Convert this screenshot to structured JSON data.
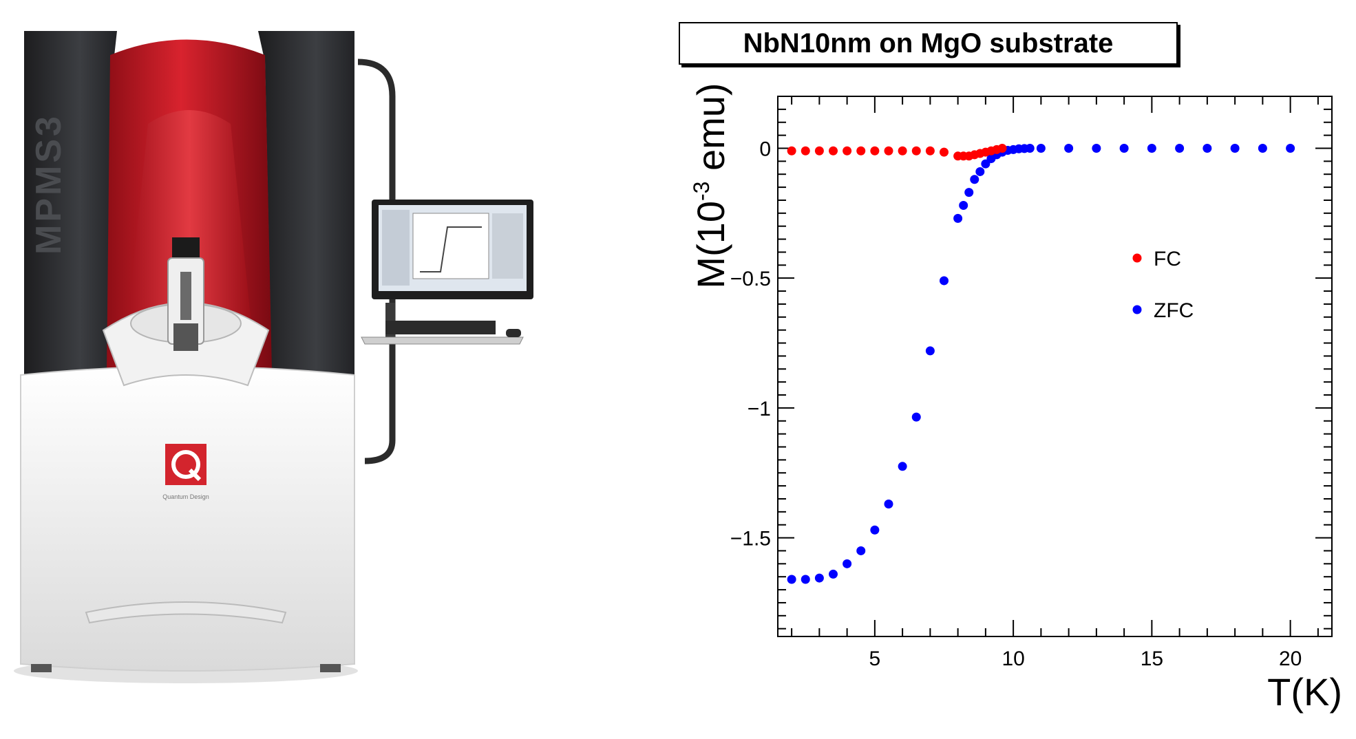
{
  "instrument": {
    "model_label": "MPMS3",
    "brand_label": "Quantum Design"
  },
  "chart_data": {
    "type": "scatter",
    "title": "NbN10nm on MgO substrate",
    "xlabel": "T(K)",
    "ylabel_prefix": "M(10",
    "ylabel_exp": "-3",
    "ylabel_suffix": " emu)",
    "xlim": [
      1.5,
      21.5
    ],
    "ylim": [
      -1.88,
      0.2
    ],
    "xticks": [
      5,
      10,
      15,
      20
    ],
    "xtick_labels": [
      "5",
      "10",
      "15",
      "20"
    ],
    "yticks": [
      0,
      -0.5,
      -1,
      -1.5
    ],
    "ytick_labels": [
      "0",
      "−0.5",
      "−1",
      "−1.5"
    ],
    "grid": false,
    "legend_position": "center-right",
    "series": [
      {
        "name": "FC",
        "color": "#ff0000",
        "x": [
          2,
          2.5,
          3,
          3.5,
          4,
          4.5,
          5,
          5.5,
          6,
          6.5,
          7,
          7.5,
          8,
          8.2,
          8.4,
          8.6,
          8.8,
          9.0,
          9.2,
          9.4,
          9.6
        ],
        "y": [
          -0.01,
          -0.01,
          -0.01,
          -0.01,
          -0.01,
          -0.01,
          -0.01,
          -0.01,
          -0.01,
          -0.01,
          -0.01,
          -0.015,
          -0.03,
          -0.03,
          -0.03,
          -0.025,
          -0.02,
          -0.015,
          -0.01,
          -0.005,
          0
        ]
      },
      {
        "name": "ZFC",
        "color": "#0000ff",
        "x": [
          2,
          2.5,
          3,
          3.5,
          4,
          4.5,
          5,
          5.5,
          6,
          6.5,
          7,
          7.5,
          8,
          8.2,
          8.4,
          8.6,
          8.8,
          9.0,
          9.2,
          9.4,
          9.6,
          9.8,
          10.0,
          10.2,
          10.4,
          10.6,
          11,
          12,
          13,
          14,
          15,
          16,
          17,
          18,
          19,
          20
        ],
        "y": [
          -1.66,
          -1.66,
          -1.655,
          -1.64,
          -1.6,
          -1.55,
          -1.47,
          -1.37,
          -1.225,
          -1.035,
          -0.78,
          -0.51,
          -0.27,
          -0.22,
          -0.17,
          -0.12,
          -0.09,
          -0.06,
          -0.04,
          -0.025,
          -0.015,
          -0.008,
          -0.005,
          -0.002,
          -0.001,
          0,
          0,
          0,
          0,
          0,
          0,
          0,
          0,
          0,
          0,
          0
        ]
      }
    ]
  }
}
